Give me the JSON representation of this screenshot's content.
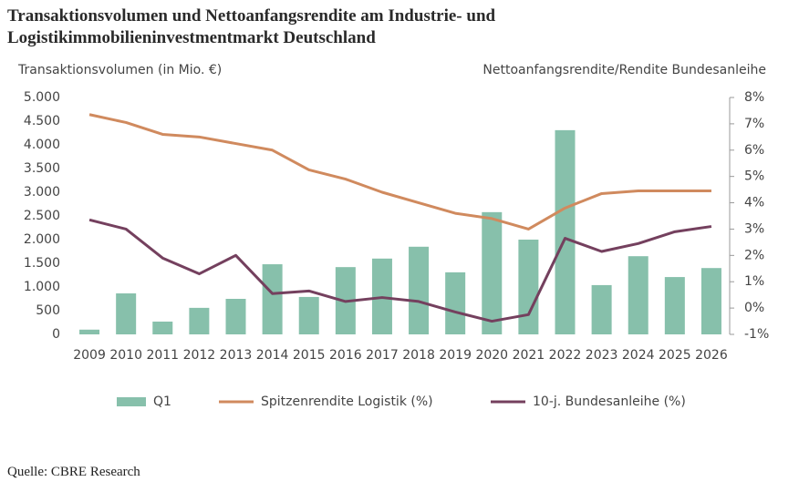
{
  "chart_data": {
    "type": "combo",
    "title": "Transaktionsvolumen und Nettoanfangsrendite am Industrie- und Logistikimmobilieninvestmentmarkt Deutschland",
    "y_label": "Transaktionsvolumen (in Mio. €)",
    "y2_label": "Nettoanfangsrendite/Rendite Bundesanleihe",
    "source": "Quelle: CBRE Research",
    "categories": [
      "2009",
      "2010",
      "2011",
      "2012",
      "2013",
      "2014",
      "2015",
      "2016",
      "2017",
      "2018",
      "2019",
      "2020",
      "2021",
      "2022",
      "2023",
      "2024",
      "2025",
      "2026"
    ],
    "series": [
      {
        "name": "Q1",
        "type": "bar",
        "color": "#87c0ab",
        "values": [
          100,
          865,
          270,
          560,
          750,
          1480,
          790,
          1420,
          1600,
          1850,
          1310,
          2580,
          2000,
          4310,
          1040,
          1650,
          1210,
          1400
        ]
      },
      {
        "name": "Spitzenrendite Logistik (%)",
        "type": "line",
        "axis": "y2",
        "color": "#d08a5e",
        "values": [
          7.35,
          7.05,
          6.6,
          6.5,
          6.25,
          6.0,
          5.25,
          4.9,
          4.4,
          4.0,
          3.6,
          3.4,
          3.0,
          3.8,
          4.35,
          4.45,
          4.45,
          4.45
        ]
      },
      {
        "name": "10-j. Bundesanleihe (%)",
        "type": "line",
        "axis": "y2",
        "color": "#74405e",
        "values": [
          3.35,
          3.0,
          1.9,
          1.3,
          2.0,
          0.55,
          0.65,
          0.25,
          0.4,
          0.25,
          -0.15,
          -0.5,
          -0.25,
          2.65,
          2.15,
          2.45,
          2.9,
          3.1
        ]
      }
    ],
    "ylim": [
      0,
      5000
    ],
    "yticks": [
      {
        "value": 0,
        "label": "0"
      },
      {
        "value": 500,
        "label": "500"
      },
      {
        "value": 1000,
        "label": "1.000"
      },
      {
        "value": 1500,
        "label": "1.500"
      },
      {
        "value": 2000,
        "label": "2.000"
      },
      {
        "value": 2500,
        "label": "2.500"
      },
      {
        "value": 3000,
        "label": "3.000"
      },
      {
        "value": 3500,
        "label": "3.500"
      },
      {
        "value": 4000,
        "label": "4.000"
      },
      {
        "value": 4500,
        "label": "4.500"
      },
      {
        "value": 5000,
        "label": "5.000"
      }
    ],
    "y2lim": [
      -1,
      8
    ],
    "y2ticks": [
      {
        "value": -1,
        "label": "-1%"
      },
      {
        "value": 0,
        "label": "0%"
      },
      {
        "value": 1,
        "label": "1%"
      },
      {
        "value": 2,
        "label": "2%"
      },
      {
        "value": 3,
        "label": "3%"
      },
      {
        "value": 4,
        "label": "4%"
      },
      {
        "value": 5,
        "label": "5%"
      },
      {
        "value": 6,
        "label": "6%"
      },
      {
        "value": 7,
        "label": "7%"
      },
      {
        "value": 8,
        "label": "8%"
      }
    ],
    "legend": "bottom"
  }
}
